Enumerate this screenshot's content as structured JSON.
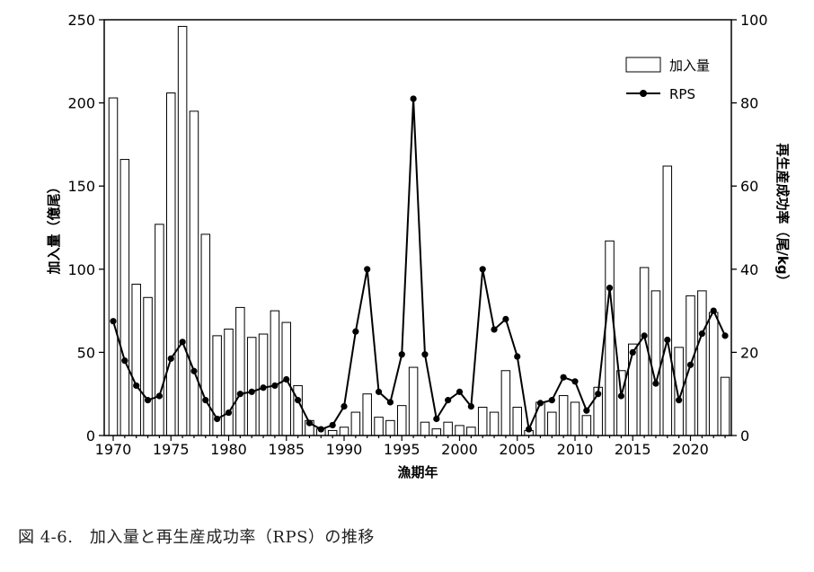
{
  "chart_data": {
    "type": "bar+line",
    "x": [
      1970,
      1971,
      1972,
      1973,
      1974,
      1975,
      1976,
      1977,
      1978,
      1979,
      1980,
      1981,
      1982,
      1983,
      1984,
      1985,
      1986,
      1987,
      1988,
      1989,
      1990,
      1991,
      1992,
      1993,
      1994,
      1995,
      1996,
      1997,
      1998,
      1999,
      2000,
      2001,
      2002,
      2003,
      2004,
      2005,
      2006,
      2007,
      2008,
      2009,
      2010,
      2011,
      2012,
      2013,
      2014,
      2015,
      2016,
      2017,
      2018,
      2019,
      2020,
      2021,
      2022,
      2023
    ],
    "series": [
      {
        "name": "加入量",
        "type": "bar",
        "axis": "left",
        "values": [
          203,
          166,
          91,
          83,
          127,
          206,
          246,
          195,
          121,
          60,
          64,
          77,
          59,
          61,
          75,
          68,
          30,
          9,
          4,
          3,
          5,
          14,
          25,
          11,
          9,
          18,
          41,
          8,
          4,
          8,
          6,
          5,
          17,
          14,
          39,
          17,
          3,
          20,
          14,
          24,
          20,
          12,
          29,
          117,
          39,
          55,
          101,
          87,
          162,
          53,
          84,
          87,
          74,
          35
        ]
      },
      {
        "name": "RPS",
        "type": "line",
        "axis": "right",
        "values": [
          27.5,
          18,
          12,
          8.5,
          9.5,
          18.5,
          22.5,
          15.5,
          8.5,
          4,
          5.5,
          10,
          10.5,
          11.5,
          12,
          13.5,
          8.5,
          3,
          1.5,
          2.5,
          7,
          25,
          40,
          10.5,
          8,
          19.5,
          81,
          19.5,
          4,
          8.5,
          10.5,
          7,
          40,
          25.5,
          28,
          19,
          1.5,
          7.8,
          8.5,
          14,
          13,
          6,
          10,
          35.5,
          9.5,
          20,
          24,
          12.5,
          23,
          8.5,
          17,
          24.5,
          30,
          24
        ]
      }
    ],
    "xlabel": "漁期年",
    "ylabel_left": "加入量（億尾）",
    "ylabel_right": "再生産成功率（尾/kg）",
    "ylim_left": [
      0,
      250
    ],
    "ylim_right": [
      0,
      100
    ],
    "xticks": [
      "1970",
      "1975",
      "1980",
      "1985",
      "1990",
      "1995",
      "2000",
      "2005",
      "2010",
      "2015",
      "2020"
    ],
    "yticks_left": [
      "0",
      "50",
      "100",
      "150",
      "200",
      "250"
    ],
    "yticks_right": [
      "0",
      "20",
      "40",
      "60",
      "80",
      "100"
    ],
    "legend": {
      "position": "top-right",
      "entries": [
        "加入量",
        "RPS"
      ]
    },
    "grid": false
  },
  "caption": "図 4-6.　加入量と再生産成功率（RPS）の推移"
}
